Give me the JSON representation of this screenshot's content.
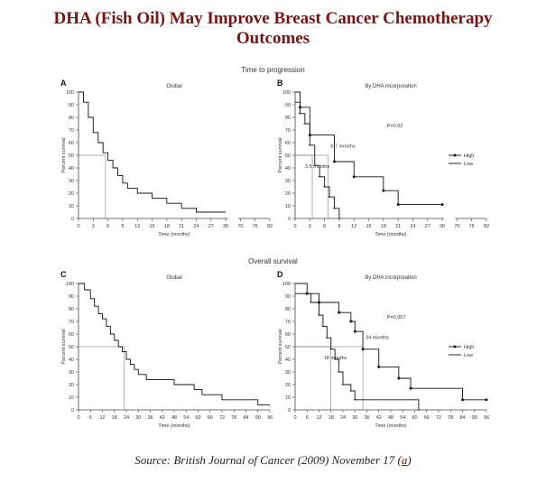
{
  "page": {
    "title_line1": "DHA (Fish Oil) May Improve Breast Cancer Chemotherapy",
    "title_line2": "Outcomes",
    "section_top": "Time to progression",
    "section_bottom": "Overall survival",
    "source_text": "Source: British Journal of Cancer (2009) November 17 (",
    "source_link": "a",
    "source_close": ")"
  },
  "chart_data": [
    {
      "id": "A",
      "type": "line",
      "step": true,
      "title": "Global",
      "xlabel": "Time (months)",
      "ylabel": "Percent survival",
      "xticks": [
        "0",
        "3",
        "6",
        "9",
        "12",
        "15",
        "18",
        "21",
        "24",
        "27",
        "30",
        "70",
        "76",
        "82"
      ],
      "yticks": [
        0,
        10,
        20,
        30,
        40,
        50,
        60,
        70,
        80,
        90,
        100
      ],
      "ylim": [
        0,
        100
      ],
      "series": [
        {
          "points": [
            [
              0,
              100
            ],
            [
              1,
              92
            ],
            [
              2,
              80
            ],
            [
              3,
              68
            ],
            [
              4,
              60
            ],
            [
              5,
              52
            ],
            [
              6,
              46
            ],
            [
              7,
              40
            ],
            [
              8,
              34
            ],
            [
              9,
              28
            ],
            [
              10,
              24
            ],
            [
              12,
              20
            ],
            [
              15,
              16
            ],
            [
              18,
              12
            ],
            [
              21,
              8
            ],
            [
              24,
              5
            ],
            [
              30,
              5
            ]
          ],
          "style": "solid"
        }
      ],
      "median": {
        "x": 5.5,
        "y": 50
      }
    },
    {
      "id": "B",
      "type": "line",
      "step": true,
      "title": "By DHA incorporation",
      "xlabel": "Time (months)",
      "ylabel": "Percent survival",
      "xticks": [
        "0",
        "3",
        "6",
        "9",
        "12",
        "15",
        "18",
        "21",
        "24",
        "27",
        "30",
        "70",
        "76",
        "82"
      ],
      "yticks": [
        0,
        10,
        20,
        30,
        40,
        50,
        60,
        70,
        80,
        90,
        100
      ],
      "ylim": [
        0,
        100
      ],
      "legend": [
        "High",
        "Low"
      ],
      "pvalue": "P=0.02",
      "annotations": [
        "6.7 months",
        "3.5 months"
      ],
      "series": [
        {
          "name": "High",
          "points": [
            [
              0,
              100
            ],
            [
              1,
              88
            ],
            [
              3,
              66
            ],
            [
              8,
              45
            ],
            [
              12,
              33
            ],
            [
              18,
              22
            ],
            [
              21,
              11
            ],
            [
              30,
              11
            ]
          ],
          "style": "solid"
        },
        {
          "name": "Low",
          "points": [
            [
              0,
              92
            ],
            [
              1,
              83
            ],
            [
              2,
              75
            ],
            [
              3,
              58
            ],
            [
              4,
              42
            ],
            [
              5,
              33
            ],
            [
              6,
              25
            ],
            [
              7,
              17
            ],
            [
              8,
              8
            ],
            [
              9,
              0
            ]
          ],
          "style": "solid"
        }
      ],
      "medians": [
        {
          "x": 3.5,
          "y": 50
        },
        {
          "x": 6.7,
          "y": 50
        }
      ]
    },
    {
      "id": "C",
      "type": "line",
      "step": true,
      "title": "Global",
      "xlabel": "Time (months)",
      "ylabel": "Percent survival",
      "xticks": [
        "0",
        "6",
        "12",
        "18",
        "24",
        "30",
        "36",
        "42",
        "48",
        "54",
        "60",
        "66",
        "72",
        "78",
        "84",
        "90",
        "96"
      ],
      "yticks": [
        0,
        10,
        20,
        30,
        40,
        50,
        60,
        70,
        80,
        90,
        100
      ],
      "ylim": [
        0,
        100
      ],
      "series": [
        {
          "points": [
            [
              0,
              100
            ],
            [
              3,
              95
            ],
            [
              6,
              88
            ],
            [
              8,
              82
            ],
            [
              10,
              76
            ],
            [
              12,
              72
            ],
            [
              14,
              66
            ],
            [
              16,
              60
            ],
            [
              18,
              55
            ],
            [
              20,
              50
            ],
            [
              22,
              46
            ],
            [
              24,
              40
            ],
            [
              26,
              36
            ],
            [
              28,
              32
            ],
            [
              30,
              28
            ],
            [
              34,
              24
            ],
            [
              48,
              20
            ],
            [
              58,
              16
            ],
            [
              62,
              12
            ],
            [
              72,
              8
            ],
            [
              90,
              4
            ],
            [
              96,
              4
            ]
          ],
          "style": "solid"
        }
      ],
      "median": {
        "x": 23,
        "y": 50
      }
    },
    {
      "id": "D",
      "type": "line",
      "step": true,
      "title": "By DHA incorporation",
      "xlabel": "Time (months)",
      "ylabel": "Percent survival",
      "xticks": [
        "0",
        "6",
        "12",
        "18",
        "24",
        "30",
        "36",
        "42",
        "48",
        "54",
        "60",
        "66",
        "72",
        "78",
        "84",
        "90",
        "96"
      ],
      "yticks": [
        0,
        10,
        20,
        30,
        40,
        50,
        60,
        70,
        80,
        90,
        100
      ],
      "ylim": [
        0,
        100
      ],
      "legend": [
        "High",
        "Low"
      ],
      "pvalue": "P=0.007",
      "annotations": [
        "34 months",
        "18 months"
      ],
      "series": [
        {
          "name": "High",
          "points": [
            [
              0,
              100
            ],
            [
              6,
              92
            ],
            [
              12,
              85
            ],
            [
              22,
              77
            ],
            [
              28,
              70
            ],
            [
              30,
              62
            ],
            [
              34,
              48
            ],
            [
              42,
              34
            ],
            [
              52,
              25
            ],
            [
              58,
              17
            ],
            [
              84,
              8
            ],
            [
              96,
              8
            ]
          ],
          "style": "solid"
        },
        {
          "name": "Low",
          "points": [
            [
              0,
              92
            ],
            [
              8,
              85
            ],
            [
              12,
              75
            ],
            [
              14,
              66
            ],
            [
              16,
              57
            ],
            [
              18,
              48
            ],
            [
              20,
              40
            ],
            [
              22,
              30
            ],
            [
              24,
              20
            ],
            [
              28,
              15
            ],
            [
              30,
              8
            ],
            [
              62,
              0
            ]
          ],
          "style": "solid"
        }
      ],
      "medians": [
        {
          "x": 18,
          "y": 50
        },
        {
          "x": 34,
          "y": 50
        }
      ]
    }
  ]
}
